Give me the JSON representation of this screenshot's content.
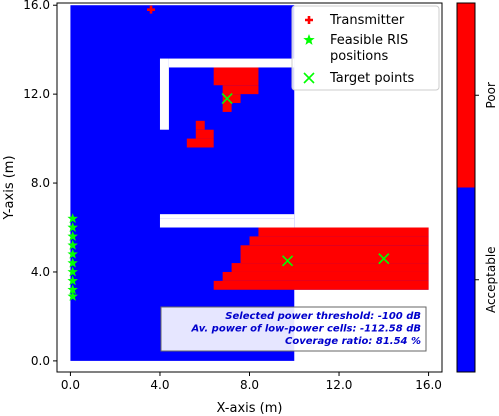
{
  "chart_data": {
    "type": "heatmap",
    "xlabel": "X-axis (m)",
    "ylabel": "Y-axis (m)",
    "xlim": [
      -0.6,
      16.6
    ],
    "ylim": [
      -0.5,
      16.1
    ],
    "xticks": [
      {
        "v": 0,
        "label": "0.0"
      },
      {
        "v": 4,
        "label": "4.0"
      },
      {
        "v": 8,
        "label": "8.0"
      },
      {
        "v": 12,
        "label": "12.0"
      },
      {
        "v": 16,
        "label": "16.0"
      }
    ],
    "yticks": [
      {
        "v": 0,
        "label": "0.0"
      },
      {
        "v": 4,
        "label": "4.0"
      },
      {
        "v": 8,
        "label": "8.0"
      },
      {
        "v": 12,
        "label": "12.0"
      },
      {
        "v": 16,
        "label": "16.0"
      }
    ],
    "colors": {
      "acceptable": "#0000ff",
      "poor": "#ff0000",
      "marker_tx": "#ff0000",
      "marker_ris": "#00ff00",
      "marker_target": "#00ff00"
    },
    "coverage_regions": [
      {
        "status": "acceptable",
        "x0": 0,
        "x1": 10,
        "y0": 0,
        "y1": 16
      },
      {
        "status": "acceptable",
        "x0": 4,
        "x1": 16,
        "y0": 3.2,
        "y1": 6
      },
      {
        "status": "poor",
        "x0": 6.4,
        "x1": 16,
        "y0": 3.2,
        "y1": 3.6
      },
      {
        "status": "poor",
        "x0": 6.8,
        "x1": 16,
        "y0": 3.6,
        "y1": 4.0
      },
      {
        "status": "poor",
        "x0": 7.2,
        "x1": 16,
        "y0": 4.0,
        "y1": 4.4
      },
      {
        "status": "poor",
        "x0": 7.6,
        "x1": 16,
        "y0": 4.4,
        "y1": 5.2
      },
      {
        "status": "poor",
        "x0": 8.0,
        "x1": 16,
        "y0": 5.2,
        "y1": 5.6
      },
      {
        "status": "poor",
        "x0": 8.4,
        "x1": 16,
        "y0": 5.6,
        "y1": 6.0
      },
      {
        "status": "poor",
        "x0": 6.4,
        "x1": 8.4,
        "y0": 12.4,
        "y1": 13.2
      },
      {
        "status": "poor",
        "x0": 6.8,
        "x1": 8.4,
        "y0": 12.0,
        "y1": 12.4
      },
      {
        "status": "poor",
        "x0": 6.8,
        "x1": 7.6,
        "y0": 11.6,
        "y1": 12.0
      },
      {
        "status": "poor",
        "x0": 6.8,
        "x1": 7.2,
        "y0": 11.2,
        "y1": 11.6
      },
      {
        "status": "poor",
        "x0": 5.6,
        "x1": 6.0,
        "y0": 10.4,
        "y1": 10.8
      },
      {
        "status": "poor",
        "x0": 5.6,
        "x1": 6.4,
        "y0": 10.0,
        "y1": 10.4
      },
      {
        "status": "poor",
        "x0": 5.2,
        "x1": 6.4,
        "y0": 9.6,
        "y1": 10.0
      }
    ],
    "walls": [
      {
        "x0": 4.0,
        "x1": 4.4,
        "y0": 10.4,
        "y1": 13.6
      },
      {
        "x0": 4.4,
        "x1": 10.0,
        "y0": 13.2,
        "y1": 13.6
      },
      {
        "x0": 4.0,
        "x1": 10.0,
        "y0": 6.0,
        "y1": 6.4
      },
      {
        "x0": 4.0,
        "x1": 10.0,
        "y0": 6.4,
        "y1": 6.6
      }
    ],
    "open_areas": [
      {
        "x0": 10.0,
        "x1": 16.6,
        "y0": 6.0,
        "y1": 16.1
      },
      {
        "x0": 4.0,
        "x1": 16.6,
        "y0": -0.5,
        "y1": 3.2
      },
      {
        "x0": 16.0,
        "x1": 16.6,
        "y0": 3.2,
        "y1": 6.0
      }
    ],
    "transmitter": {
      "x": 3.6,
      "y": 15.8
    },
    "ris_positions": [
      {
        "x": 0.1,
        "y": 6.4
      },
      {
        "x": 0.1,
        "y": 6.0
      },
      {
        "x": 0.1,
        "y": 5.6
      },
      {
        "x": 0.1,
        "y": 5.2
      },
      {
        "x": 0.1,
        "y": 4.8
      },
      {
        "x": 0.1,
        "y": 4.4
      },
      {
        "x": 0.1,
        "y": 4.0
      },
      {
        "x": 0.1,
        "y": 3.6
      },
      {
        "x": 0.1,
        "y": 3.2
      },
      {
        "x": 0.1,
        "y": 2.9
      }
    ],
    "target_points": [
      {
        "x": 7.0,
        "y": 11.8
      },
      {
        "x": 9.7,
        "y": 4.5
      },
      {
        "x": 14.0,
        "y": 4.6
      }
    ],
    "legend": {
      "placement": "top-right",
      "entries": [
        {
          "marker": "plus",
          "lines": [
            "Transmitter"
          ]
        },
        {
          "marker": "star",
          "lines": [
            "Feasible RIS",
            "positions"
          ]
        },
        {
          "marker": "x",
          "lines": [
            "Target points"
          ]
        }
      ]
    },
    "info_box": {
      "placement": "bottom-right",
      "lines": [
        "Selected power threshold: -100 dB",
        "Av. power of low-power cells: -112.58 dB",
        "Coverage ratio: 81.54 %"
      ]
    },
    "colorbar": {
      "labels": [
        "Acceptable",
        "Poor"
      ]
    }
  }
}
